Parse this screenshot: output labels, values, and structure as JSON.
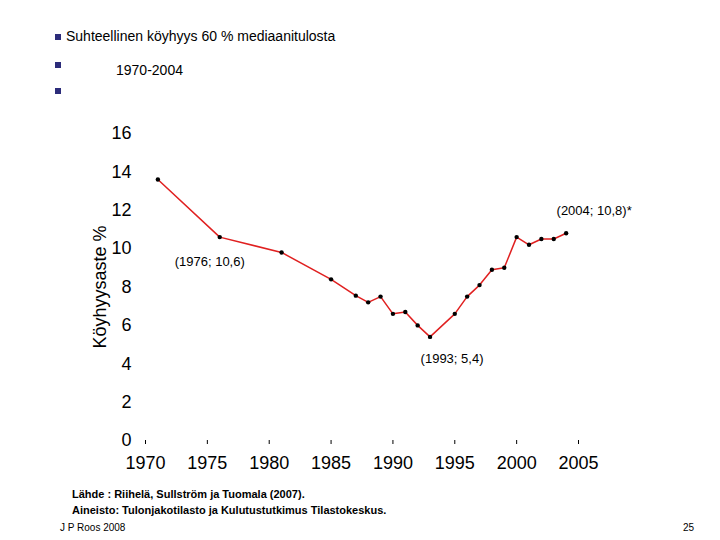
{
  "chart_data": {
    "type": "line",
    "title": "Suhteellinen köyhyys 60 % mediaanitulosta",
    "subtitle": "1970-2004",
    "y_label": "Köyhyysaste %",
    "x": [
      1971,
      1976,
      1981,
      1985,
      1987,
      1988,
      1989,
      1990,
      1991,
      1992,
      1993,
      1995,
      1996,
      1997,
      1998,
      1999,
      2000,
      2001,
      2002,
      2003,
      2004
    ],
    "values": [
      13.6,
      10.6,
      9.8,
      8.4,
      7.55,
      7.2,
      7.5,
      6.6,
      6.7,
      6.0,
      5.4,
      6.6,
      7.5,
      8.1,
      8.9,
      9.0,
      10.6,
      10.2,
      10.5,
      10.5,
      10.8
    ],
    "color": "#e02020",
    "marker": "circle",
    "xlim": [
      1970,
      2005
    ],
    "xticks": [
      1970,
      1975,
      1980,
      1985,
      1990,
      1995,
      2000,
      2005
    ],
    "ylim": [
      0,
      16
    ],
    "yticks": [
      0,
      2,
      4,
      6,
      8,
      10,
      12,
      14,
      16
    ],
    "grid": false,
    "annotations": [
      {
        "x": 1976,
        "y": 10.6,
        "text": "(1976; 10,6)"
      },
      {
        "x": 1993,
        "y": 5.4,
        "text": "(1993; 5,4)"
      },
      {
        "x": 2004,
        "y": 10.8,
        "text": "(2004; 10,8)*"
      }
    ],
    "source": [
      "Lähde : Riihelä, Sullström ja Tuomala (2007).",
      "Aineisto: Tulonjakotilasto ja Kulutustutkimus Tilastokeskus."
    ],
    "author": "J P Roos 2008",
    "page": "25"
  }
}
